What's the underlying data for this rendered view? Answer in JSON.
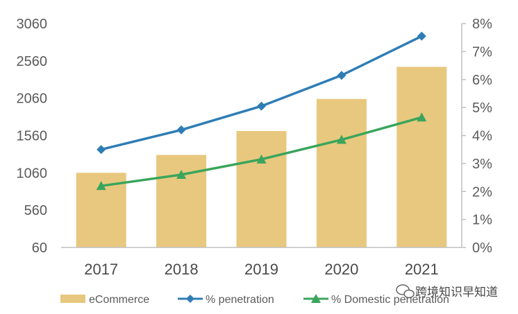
{
  "chart_data": {
    "type": "bar",
    "categories": [
      "2017",
      "2018",
      "2019",
      "2020",
      "2021"
    ],
    "series": [
      {
        "name": "eCommerce",
        "type": "bar",
        "axis": "left",
        "color": "#e8c87e",
        "values": [
          1060,
          1300,
          1620,
          2050,
          2480
        ]
      },
      {
        "name": "% penetration",
        "type": "line",
        "axis": "right",
        "marker": "diamond",
        "color": "#2e7db5",
        "values": [
          3.5,
          4.2,
          5.05,
          6.15,
          7.55
        ]
      },
      {
        "name": "% Domestic penetration",
        "type": "line",
        "axis": "right",
        "marker": "triangle",
        "color": "#3aa55c",
        "values": [
          2.2,
          2.6,
          3.15,
          3.85,
          4.65
        ]
      }
    ],
    "ylim_left": [
      60,
      3060
    ],
    "yticks_left": [
      "3060",
      "2560",
      "2060",
      "1560",
      "1060",
      "560",
      "60"
    ],
    "ylim_right": [
      0,
      8
    ],
    "yticks_right": [
      "8%",
      "7%",
      "6%",
      "5%",
      "4%",
      "3%",
      "2%",
      "1%",
      "0%"
    ],
    "legend_position": "bottom",
    "grid": false
  },
  "watermark": {
    "text": "跨境知识早知道",
    "icon": "wechat-icon"
  }
}
